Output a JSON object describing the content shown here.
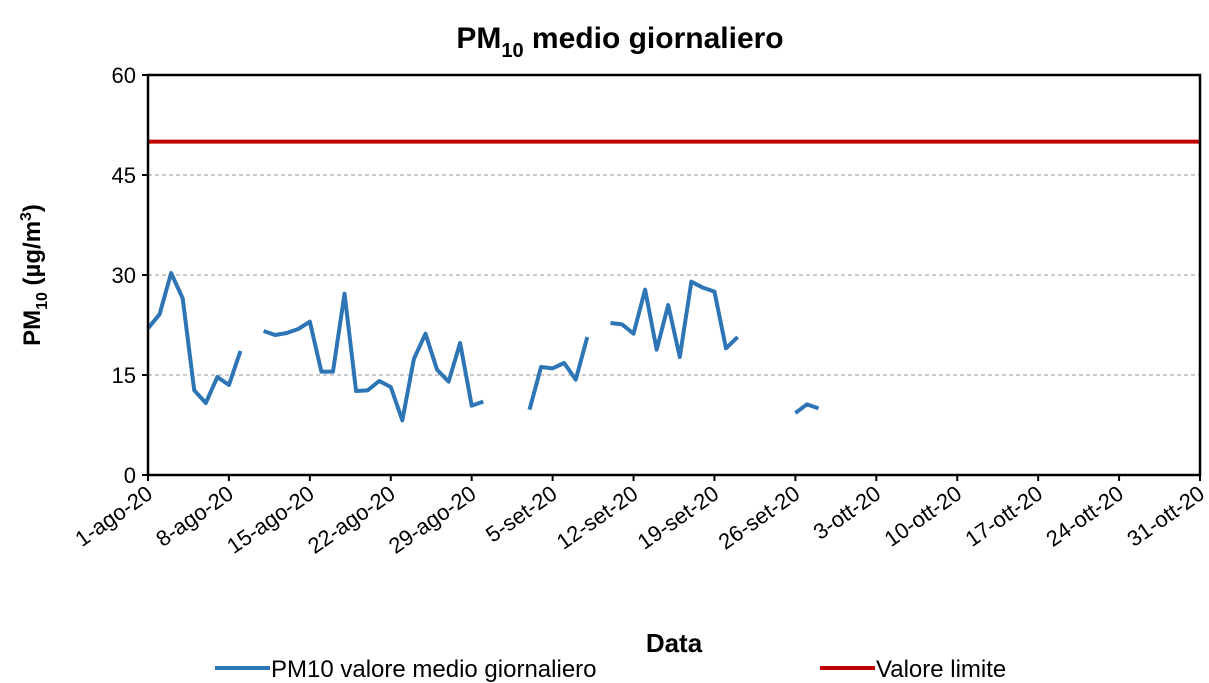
{
  "chart_data": {
    "type": "line",
    "title_parts": [
      "PM",
      "10",
      " medio giornaliero"
    ],
    "ylabel_parts": [
      "PM",
      "10",
      " (µg/m",
      "3",
      ")"
    ],
    "xlabel": "Data",
    "categories": [
      "1-ago-20",
      null,
      null,
      null,
      null,
      null,
      null,
      "8-ago-20",
      null,
      null,
      null,
      null,
      null,
      null,
      "15-ago-20",
      null,
      null,
      null,
      null,
      null,
      null,
      "22-ago-20",
      null,
      null,
      null,
      null,
      null,
      null,
      "29-ago-20",
      null,
      null,
      null,
      null,
      null,
      null,
      "5-set-20",
      null,
      null,
      null,
      null,
      null,
      null,
      "12-set-20",
      null,
      null,
      null,
      null,
      null,
      null,
      "19-set-20",
      null,
      null,
      null,
      null,
      null,
      null,
      "26-set-20",
      null,
      null,
      null,
      null,
      null,
      null,
      "3-ott-20",
      null,
      null,
      null,
      null,
      null,
      null,
      "10-ott-20",
      null,
      null,
      null,
      null,
      null,
      null,
      "17-ott-20",
      null,
      null,
      null,
      null,
      null,
      null,
      "24-ott-20",
      null,
      null,
      null,
      null,
      null,
      null,
      "31-ott-20"
    ],
    "series": [
      {
        "name": "PM10 valore medio giornaliero",
        "color": "#2e75b6",
        "values": [
          22.0,
          24.1,
          30.3,
          26.5,
          12.7,
          10.8,
          14.7,
          13.5,
          18.6,
          null,
          21.6,
          21.0,
          21.3,
          21.9,
          23.0,
          15.5,
          15.5,
          27.2,
          12.6,
          12.7,
          14.1,
          13.2,
          8.2,
          17.4,
          21.2,
          15.8,
          14.0,
          19.8,
          10.4,
          11.0,
          null,
          null,
          null,
          9.8,
          16.2,
          16.0,
          16.8,
          14.3,
          20.7,
          null,
          22.8,
          22.6,
          21.2,
          27.8,
          18.8,
          25.5,
          17.7,
          29.0,
          28.1,
          27.5,
          19.0,
          20.7,
          null,
          null,
          null,
          null,
          9.3,
          10.6,
          10.0,
          null,
          null,
          null,
          null,
          null,
          null,
          null,
          null,
          null,
          null,
          null,
          null,
          null,
          null,
          null,
          null,
          null,
          null,
          null,
          null,
          null,
          null,
          null,
          null,
          null,
          null,
          null,
          null,
          null,
          null,
          null,
          null,
          null
        ]
      },
      {
        "name": "Valore limite",
        "color": "#c00000",
        "values": [
          50,
          50,
          50,
          50,
          50,
          50,
          50,
          50,
          50,
          50,
          50,
          50,
          50,
          50,
          50,
          50,
          50,
          50,
          50,
          50,
          50,
          50,
          50,
          50,
          50,
          50,
          50,
          50,
          50,
          50,
          50,
          50,
          50,
          50,
          50,
          50,
          50,
          50,
          50,
          50,
          50,
          50,
          50,
          50,
          50,
          50,
          50,
          50,
          50,
          50,
          50,
          50,
          50,
          50,
          50,
          50,
          50,
          50,
          50,
          50,
          50,
          50,
          50,
          50,
          50,
          50,
          50,
          50,
          50,
          50,
          50,
          50,
          50,
          50,
          50,
          50,
          50,
          50,
          50,
          50,
          50,
          50,
          50,
          50,
          50,
          50,
          50,
          50,
          50,
          50,
          50,
          50
        ]
      }
    ],
    "ylim": [
      0,
      60
    ],
    "yticks": [
      0,
      15,
      30,
      45,
      60
    ],
    "grid": true
  }
}
